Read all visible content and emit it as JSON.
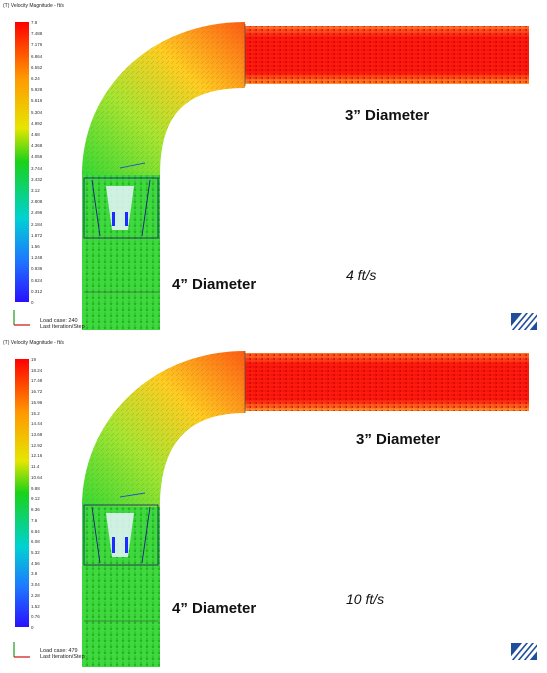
{
  "panels": [
    {
      "legend_title": "(T) Velocity Magnitude - ft/s",
      "ticks": [
        "7.8",
        "7.488",
        "7.176",
        "6.864",
        "6.552",
        "6.24",
        "5.928",
        "5.616",
        "5.304",
        "4.992",
        "4.68",
        "4.368",
        "4.056",
        "3.744",
        "3.432",
        "3.12",
        "2.808",
        "2.496",
        "2.184",
        "1.872",
        "1.56",
        "1.248",
        "0.936",
        "0.624",
        "0.312",
        "0"
      ],
      "label_outlet": "3” Diameter",
      "label_inlet": "4” Diameter",
      "speed": "4 ft/s",
      "load_case": "Load case: 240",
      "iteration": "Last Iteration/Step"
    },
    {
      "legend_title": "(T) Velocity Magnitude - ft/s",
      "ticks": [
        "19",
        "18.24",
        "17.48",
        "16.72",
        "15.96",
        "15.2",
        "14.44",
        "13.68",
        "12.92",
        "12.16",
        "11.4",
        "10.64",
        "9.88",
        "9.12",
        "8.36",
        "7.6",
        "6.84",
        "6.08",
        "5.32",
        "4.56",
        "3.8",
        "3.04",
        "2.28",
        "1.52",
        "0.76",
        "0"
      ],
      "label_outlet": "3” Diameter",
      "label_inlet": "4” Diameter",
      "speed": "10 ft/s",
      "load_case": "Load case: 479",
      "iteration": "Last Iteration/Step"
    }
  ],
  "colors": {
    "scale_top": "#ff0000",
    "scale_mid": "#19d219",
    "scale_bottom": "#2a10ff",
    "logo": "#1f4f9b"
  }
}
